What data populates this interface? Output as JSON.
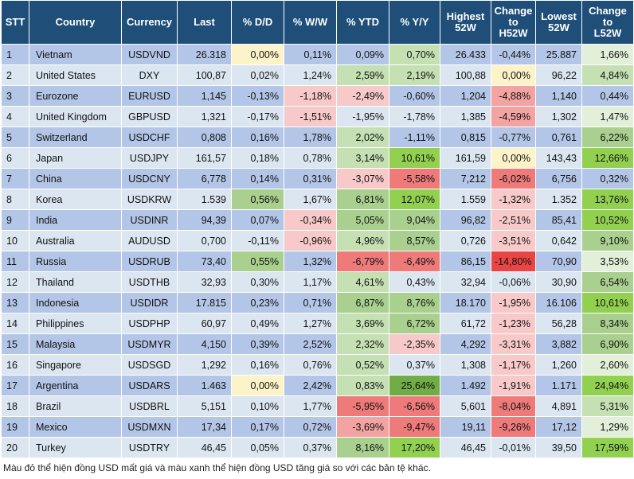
{
  "table": {
    "headers": [
      "STT",
      "Country",
      "Currency",
      "Last",
      "% D/D",
      "% W/W",
      "% YTD",
      "% Y/Y",
      "Highest 52W",
      "Change to H52W",
      "Lowest 52W",
      "Change to L52W"
    ],
    "rows": [
      [
        "1",
        "Vietnam",
        "USDVND",
        "26.318",
        "0,00%",
        "0,11%",
        "0,09%",
        "0,70%",
        "26.433",
        "-0,44%",
        "25.887",
        "1,66%"
      ],
      [
        "2",
        "United States",
        "DXY",
        "100,87",
        "0,02%",
        "1,24%",
        "2,59%",
        "2,19%",
        "100,88",
        "0,00%",
        "96,22",
        "4,84%"
      ],
      [
        "3",
        "Eurozone",
        "EURUSD",
        "1,145",
        "-0,13%",
        "-1,18%",
        "-2,49%",
        "-0,60%",
        "1,204",
        "-4,88%",
        "1,140",
        "0,44%"
      ],
      [
        "4",
        "United Kingdom",
        "GBPUSD",
        "1,321",
        "-0,17%",
        "-1,51%",
        "-1,95%",
        "-1,78%",
        "1,385",
        "-4,59%",
        "1,302",
        "1,47%"
      ],
      [
        "5",
        "Switzerland",
        "USDCHF",
        "0,808",
        "0,16%",
        "1,78%",
        "2,02%",
        "-1,11%",
        "0,815",
        "-0,77%",
        "0,761",
        "6,22%"
      ],
      [
        "6",
        "Japan",
        "USDJPY",
        "161,57",
        "0,18%",
        "0,78%",
        "3,14%",
        "10,61%",
        "161,59",
        "0,00%",
        "143,43",
        "12,66%"
      ],
      [
        "7",
        "China",
        "USDCNY",
        "6,778",
        "0,14%",
        "0,31%",
        "-3,07%",
        "-5,58%",
        "7,212",
        "-6,02%",
        "6,756",
        "0,32%"
      ],
      [
        "8",
        "Korea",
        "USDKRW",
        "1.539",
        "0,56%",
        "1,67%",
        "6,81%",
        "12,07%",
        "1.559",
        "-1,32%",
        "1.352",
        "13,76%"
      ],
      [
        "9",
        "India",
        "USDINR",
        "94,39",
        "0,07%",
        "-0,34%",
        "5,05%",
        "9,04%",
        "96,82",
        "-2,51%",
        "85,41",
        "10,52%"
      ],
      [
        "10",
        "Australia",
        "AUDUSD",
        "0,700",
        "-0,11%",
        "-0,96%",
        "4,96%",
        "8,57%",
        "0,726",
        "-3,51%",
        "0,642",
        "9,10%"
      ],
      [
        "11",
        "Russia",
        "USDRUB",
        "73,40",
        "0,55%",
        "1,32%",
        "-6,79%",
        "-6,49%",
        "86,15",
        "-14,80%",
        "70,90",
        "3,53%"
      ],
      [
        "12",
        "Thailand",
        "USDTHB",
        "32,93",
        "0,30%",
        "1,17%",
        "4,61%",
        "0,43%",
        "32,94",
        "-0,06%",
        "30,90",
        "6,54%"
      ],
      [
        "13",
        "Indonesia",
        "USDIDR",
        "17.815",
        "0,23%",
        "0,71%",
        "6,87%",
        "8,76%",
        "18.170",
        "-1,95%",
        "16.106",
        "10,61%"
      ],
      [
        "14",
        "Philippines",
        "USDPHP",
        "60,97",
        "0,49%",
        "1,27%",
        "3,69%",
        "6,72%",
        "61,72",
        "-1,23%",
        "56,28",
        "8,34%"
      ],
      [
        "15",
        "Malaysia",
        "USDMYR",
        "4,150",
        "0,39%",
        "2,52%",
        "2,32%",
        "-2,35%",
        "4,292",
        "-3,31%",
        "3,882",
        "6,90%"
      ],
      [
        "16",
        "Singapore",
        "USDSGD",
        "1,292",
        "0,16%",
        "0,76%",
        "0,52%",
        "0,37%",
        "1,308",
        "-1,17%",
        "1,260",
        "2,60%"
      ],
      [
        "17",
        "Argentina",
        "USDARS",
        "1.463",
        "0,00%",
        "2,42%",
        "0,83%",
        "25,64%",
        "1.492",
        "-1,91%",
        "1.171",
        "24,94%"
      ],
      [
        "18",
        "Brazil",
        "USDBRL",
        "5,151",
        "0,10%",
        "1,77%",
        "-5,95%",
        "-6,56%",
        "5,601",
        "-8,04%",
        "4,891",
        "5,31%"
      ],
      [
        "19",
        "Mexico",
        "USDMXN",
        "17,34",
        "0,17%",
        "0,72%",
        "-3,69%",
        "-9,47%",
        "19,11",
        "-9,26%",
        "17,12",
        "1,29%"
      ],
      [
        "20",
        "Turkey",
        "USDTRY",
        "46,45",
        "0,05%",
        "0,37%",
        "8,16%",
        "17,20%",
        "46,45",
        "-0,01%",
        "39,50",
        "17,59%"
      ]
    ],
    "cell_colors": {
      "neg1": "#f8c9c9",
      "neg2": "#f4a3a3",
      "neg3": "#ee7a7a",
      "neg4": "#ea4545",
      "neutral": "#fdf3c9",
      "pos1": "#e2efd9",
      "pos2": "#c5e0b3",
      "pos3": "#a9d08e",
      "pos4": "#92d050",
      "pos5": "#70ad47"
    },
    "header_color": "#1f4e79",
    "row_colors": [
      "#b4c6e7",
      "#dce6f1"
    ]
  },
  "caption": "Màu đỏ thể hiện đồng USD mất giá và màu xanh thể hiện đồng USD tăng giá so với các bản tệ khác."
}
